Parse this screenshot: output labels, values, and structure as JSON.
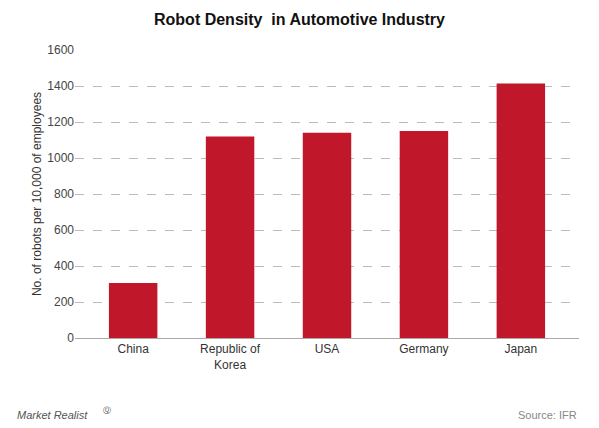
{
  "chart_data": {
    "type": "bar",
    "title": "Robot Density  in Automotive Industry",
    "categories": [
      "China",
      "Republic of\nKorea",
      "USA",
      "Germany",
      "Japan"
    ],
    "values": [
      305,
      1120,
      1140,
      1150,
      1414
    ],
    "color": "#c0182a",
    "ylabel": "No. of robots per 10,000 of employees",
    "ylim": [
      0,
      1600
    ],
    "yticks": [
      0,
      200,
      400,
      600,
      800,
      1000,
      1200,
      1400,
      1600
    ],
    "grid": true,
    "annotations": [
      "Market Realist",
      "Ⓠ",
      "Source: IFR"
    ]
  }
}
